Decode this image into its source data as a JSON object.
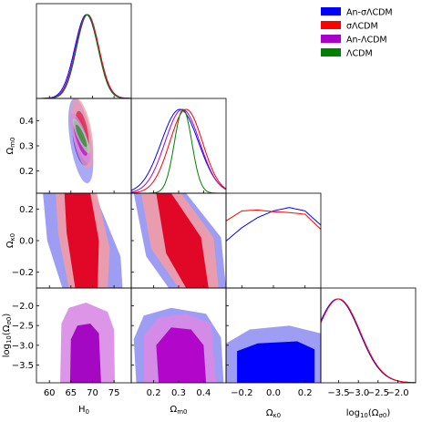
{
  "chart_data": {
    "type": "corner",
    "parameters": [
      {
        "key": "H0",
        "label": "H",
        "sub": "0",
        "range": [
          57,
          79
        ],
        "ticks": [
          60,
          65,
          70,
          75
        ]
      },
      {
        "key": "Om0",
        "label": "Ω",
        "sub": "m0",
        "range": [
          0.11,
          0.49
        ],
        "ticks": [
          0.2,
          0.3,
          0.4
        ]
      },
      {
        "key": "Ok0",
        "label": "Ω",
        "sub": "κ0",
        "range": [
          -0.3,
          0.3
        ],
        "ticks": [
          -0.2,
          0.0,
          0.2
        ]
      },
      {
        "key": "logOs0",
        "label": "log",
        "sub": "10",
        "suffix": "(Ω",
        "sub2": "σ0",
        "suffix2": ")",
        "range": [
          -3.95,
          -1.55
        ],
        "ticks": [
          -3.5,
          -3.0,
          -2.5,
          -2.0
        ]
      }
    ],
    "tick_labels": {
      "H0": [
        "60",
        "65",
        "70",
        "75"
      ],
      "Om0": [
        "0.2",
        "0.3",
        "0.4"
      ],
      "Ok0": [
        "−0.2",
        "0.0",
        "0.2"
      ],
      "logOs0_x": [
        "−3.5",
        "−3.0",
        "−2.5",
        "−2.0"
      ],
      "Om0_y": [
        "0.2",
        "0.3",
        "0.4"
      ],
      "Ok0_y": [
        "−0.2",
        "0.0",
        "0.2"
      ],
      "logOs0_y": [
        "−2.0",
        "−2.5",
        "−3.0",
        "−3.5"
      ]
    },
    "series": [
      {
        "name": "An-σΛCDM",
        "color": "#0000ff"
      },
      {
        "name": "σΛCDM",
        "color": "#ff0000"
      },
      {
        "name": "An-ΛCDM",
        "color": "#aa00cc"
      },
      {
        "name": "ΛCDM",
        "color": "#008000"
      }
    ],
    "marginals": {
      "H0": [
        {
          "series": "An-σΛCDM",
          "mean": 68.6,
          "sd": 2.7
        },
        {
          "series": "σΛCDM",
          "mean": 68.9,
          "sd": 2.6
        },
        {
          "series": "An-ΛCDM",
          "mean": 68.7,
          "sd": 2.6
        },
        {
          "series": "ΛCDM",
          "mean": 68.8,
          "sd": 2.5
        }
      ],
      "Om0": [
        {
          "series": "An-σΛCDM",
          "mean": 0.305,
          "sd": 0.075
        },
        {
          "series": "σΛCDM",
          "mean": 0.33,
          "sd": 0.066
        },
        {
          "series": "An-ΛCDM",
          "mean": 0.315,
          "sd": 0.07
        },
        {
          "series": "ΛCDM",
          "mean": 0.318,
          "sd": 0.035
        }
      ],
      "Ok0": [
        {
          "series": "An-σΛCDM",
          "points": [
            [
              -0.3,
              0.56
            ],
            [
              -0.2,
              0.72
            ],
            [
              -0.1,
              0.84
            ],
            [
              0.0,
              0.92
            ],
            [
              0.1,
              0.96
            ],
            [
              0.2,
              0.92
            ],
            [
              0.3,
              0.75
            ]
          ]
        },
        {
          "series": "σΛCDM",
          "points": [
            [
              -0.3,
              0.8
            ],
            [
              -0.2,
              0.92
            ],
            [
              -0.1,
              0.93
            ],
            [
              0.0,
              0.91
            ],
            [
              0.1,
              0.9
            ],
            [
              0.2,
              0.88
            ],
            [
              0.3,
              0.7
            ]
          ]
        }
      ],
      "logOs0": [
        {
          "series": "An-σΛCDM",
          "mean": -3.52,
          "sd": 0.55,
          "tail": 0.06
        },
        {
          "series": "σΛCDM",
          "mean": -3.5,
          "sd": 0.55,
          "tail": 0.06
        }
      ]
    },
    "contours_2d": [
      {
        "panel": "Om0-H0",
        "series": "An-σΛCDM",
        "center": [
          67.3,
          0.32
        ],
        "outer": [
          2.9,
          0.17,
          0.5
        ],
        "inner": [
          2.0,
          0.1,
          0.5
        ]
      },
      {
        "panel": "Om0-H0",
        "series": "σΛCDM",
        "center": [
          67.6,
          0.35
        ],
        "outer": [
          2.6,
          0.14,
          0.5
        ],
        "inner": [
          1.6,
          0.09,
          0.5
        ]
      },
      {
        "panel": "Om0-H0",
        "series": "An-ΛCDM",
        "center": [
          67.2,
          0.33
        ],
        "outer": [
          2.4,
          0.1,
          0.75
        ],
        "inner": [
          1.6,
          0.07,
          0.75
        ]
      },
      {
        "panel": "Om0-H0",
        "series": "ΛCDM",
        "center": [
          67.4,
          0.34
        ],
        "outer": [
          2.0,
          0.07,
          0.85
        ],
        "inner": [
          1.3,
          0.045,
          0.85
        ]
      }
    ],
    "legend_position": "top-right",
    "grid": false
  }
}
